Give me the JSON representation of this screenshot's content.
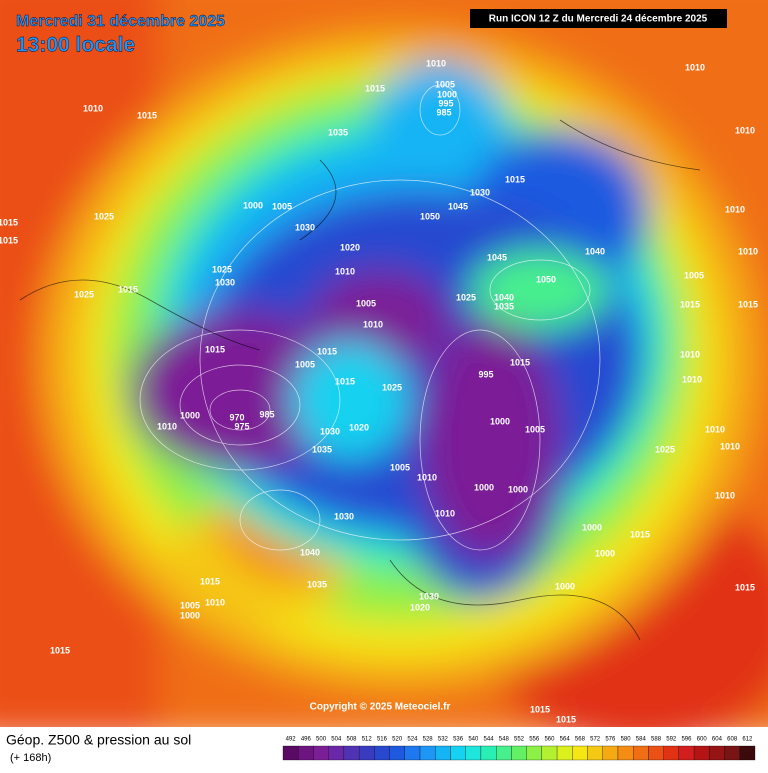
{
  "header": {
    "date": "Mercredi 31 décembre 2025",
    "time": "13:00 locale",
    "run": "Run ICON 12 Z du Mercredi 24 décembre 2025"
  },
  "footer": {
    "title": "Géop. Z500 & pression au sol",
    "lead": "(+ 168h)",
    "copyright": "Copyright © 2025 Meteociel.fr"
  },
  "legend": {
    "levels": [
      492,
      496,
      500,
      504,
      508,
      512,
      516,
      520,
      524,
      528,
      532,
      536,
      540,
      544,
      548,
      552,
      556,
      560,
      564,
      568,
      572,
      576,
      580,
      584,
      588,
      592,
      596,
      600,
      604,
      608,
      612
    ],
    "colors": [
      "#5a0a64",
      "#6e1480",
      "#7c1e96",
      "#6a28a8",
      "#5032b4",
      "#3a3cc0",
      "#2848d0",
      "#1e5ae0",
      "#1e78f0",
      "#1e96f5",
      "#14b4f5",
      "#14d2f0",
      "#1ee6dc",
      "#28f0b4",
      "#46f08c",
      "#64f064",
      "#8cf046",
      "#b4f032",
      "#dcf01e",
      "#f5e614",
      "#f5c814",
      "#f5aa14",
      "#f58c14",
      "#f06e14",
      "#eb5014",
      "#e13214",
      "#d21e1e",
      "#b41414",
      "#961414",
      "#781414",
      "#3c0a0a"
    ]
  },
  "isobar_labels": [
    1010,
    1015,
    1010,
    1010,
    1015,
    1005,
    1000,
    995,
    985,
    1035,
    1010,
    1015,
    1030,
    1050,
    1045,
    1010,
    1015,
    1015,
    1025,
    1000,
    1005,
    1030,
    1020,
    1010,
    1025,
    1030,
    1025,
    1015,
    1040,
    1045,
    1050,
    1040,
    1035,
    1005,
    1010,
    1025,
    1015,
    1005,
    1015,
    1015,
    1025,
    995,
    1015,
    970,
    985,
    975,
    1000,
    1010,
    1000,
    1005,
    1030,
    1020,
    1035,
    1005,
    1010,
    1000,
    1000,
    1010,
    1030,
    1000,
    1015,
    1040,
    1015,
    1035,
    1000,
    1000,
    1030,
    1020,
    1010,
    1005,
    1000,
    1015,
    1015,
    1015,
    1015,
    1010,
    1005,
    1015,
    1010,
    1010,
    1010,
    1025,
    1010,
    1010,
    1015
  ]
}
